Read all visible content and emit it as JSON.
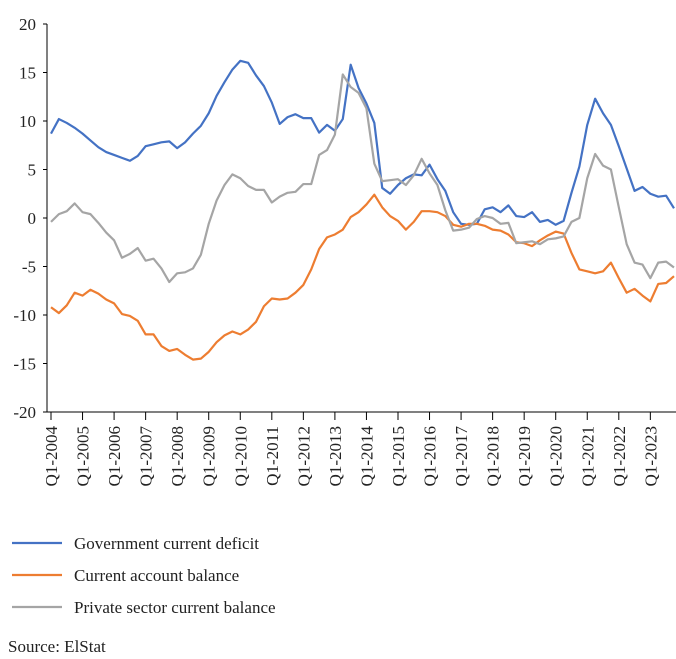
{
  "chart_data": {
    "type": "line",
    "categories": [
      "Q1-2004",
      null,
      null,
      null,
      "Q1-2005",
      null,
      null,
      null,
      "Q1-2006",
      null,
      null,
      null,
      "Q1-2007",
      null,
      null,
      null,
      "Q1-2008",
      null,
      null,
      null,
      "Q1-2009",
      null,
      null,
      null,
      "Q1-2010",
      null,
      null,
      null,
      "Q1-2011",
      null,
      null,
      null,
      "Q1-2012",
      null,
      null,
      null,
      "Q1-2013",
      null,
      null,
      null,
      "Q1-2014",
      null,
      null,
      null,
      "Q1-2015",
      null,
      null,
      null,
      "Q1-2016",
      null,
      null,
      null,
      "Q1-2017",
      null,
      null,
      null,
      "Q1-2018",
      null,
      null,
      null,
      "Q1-2019",
      null,
      null,
      null,
      "Q1-2020",
      null,
      null,
      null,
      "Q1-2021",
      null,
      null,
      null,
      "Q1-2022",
      null,
      null,
      null,
      "Q1-2023",
      null,
      null,
      null
    ],
    "series": [
      {
        "name": "Government current deficit",
        "color": "#4472c4",
        "values": [
          8.7,
          10.2,
          9.8,
          9.3,
          8.7,
          8.0,
          7.3,
          6.8,
          6.5,
          6.2,
          5.9,
          6.4,
          7.4,
          7.6,
          7.8,
          7.9,
          7.2,
          7.8,
          8.7,
          9.5,
          10.8,
          12.6,
          14.0,
          15.3,
          16.2,
          16.0,
          14.7,
          13.6,
          11.9,
          9.7,
          10.4,
          10.7,
          10.3,
          10.3,
          8.8,
          9.6,
          9.0,
          10.2,
          15.8,
          13.4,
          11.8,
          9.8,
          3.1,
          2.5,
          3.4,
          4.1,
          4.5,
          4.4,
          5.5,
          4.0,
          2.8,
          0.6,
          -0.6,
          -0.7,
          -0.6,
          0.9,
          1.1,
          0.6,
          1.3,
          0.2,
          0.1,
          0.6,
          -0.4,
          -0.2,
          -0.7,
          -0.3,
          2.6,
          5.3,
          9.6,
          12.3,
          10.8,
          9.6,
          7.4,
          5.1,
          2.8,
          3.2,
          2.5,
          2.2,
          2.3,
          1.0
        ]
      },
      {
        "name": "Current account balance",
        "color": "#ed7d31",
        "values": [
          -9.2,
          -9.8,
          -9.0,
          -7.7,
          -8.0,
          -7.4,
          -7.8,
          -8.4,
          -8.8,
          -9.9,
          -10.1,
          -10.6,
          -12.0,
          -12.0,
          -13.2,
          -13.7,
          -13.5,
          -14.1,
          -14.6,
          -14.5,
          -13.8,
          -12.8,
          -12.1,
          -11.7,
          -12.0,
          -11.5,
          -10.7,
          -9.1,
          -8.3,
          -8.4,
          -8.3,
          -7.7,
          -6.9,
          -5.3,
          -3.2,
          -2.0,
          -1.7,
          -1.2,
          0.1,
          0.6,
          1.4,
          2.4,
          1.1,
          0.2,
          -0.3,
          -1.2,
          -0.4,
          0.7,
          0.7,
          0.6,
          0.2,
          -0.7,
          -0.9,
          -0.6,
          -0.6,
          -0.8,
          -1.2,
          -1.3,
          -1.7,
          -2.5,
          -2.6,
          -2.9,
          -2.3,
          -1.8,
          -1.4,
          -1.6,
          -3.6,
          -5.3,
          -5.5,
          -5.7,
          -5.5,
          -4.6,
          -6.2,
          -7.7,
          -7.3,
          -8.0,
          -8.6,
          -6.8,
          -6.7,
          -6.0
        ]
      },
      {
        "name": "Private sector current balance",
        "color": "#a5a5a5",
        "values": [
          -0.4,
          0.4,
          0.7,
          1.5,
          0.6,
          0.4,
          -0.5,
          -1.5,
          -2.3,
          -4.1,
          -3.7,
          -3.1,
          -4.4,
          -4.2,
          -5.2,
          -6.6,
          -5.7,
          -5.6,
          -5.2,
          -3.8,
          -0.6,
          1.8,
          3.4,
          4.5,
          4.1,
          3.3,
          2.9,
          2.9,
          1.6,
          2.2,
          2.6,
          2.7,
          3.5,
          3.5,
          6.5,
          7.0,
          8.6,
          14.8,
          13.5,
          12.9,
          11.3,
          5.6,
          3.8,
          3.9,
          4.0,
          3.4,
          4.4,
          6.1,
          4.6,
          3.4,
          0.8,
          -1.3,
          -1.2,
          -1.0,
          -0.1,
          0.2,
          0.0,
          -0.6,
          -0.5,
          -2.6,
          -2.5,
          -2.4,
          -2.7,
          -2.2,
          -2.1,
          -1.9,
          -0.4,
          0.0,
          4.1,
          6.6,
          5.4,
          5.0,
          1.1,
          -2.7,
          -4.6,
          -4.8,
          -6.2,
          -4.6,
          -4.5,
          -5.1
        ]
      }
    ],
    "ylim": [
      -20,
      20
    ],
    "yticks": [
      -20,
      -15,
      -10,
      -5,
      0,
      5,
      10,
      15,
      20
    ],
    "grid": false,
    "legend": "bottom",
    "source": "Source: ElStat"
  }
}
